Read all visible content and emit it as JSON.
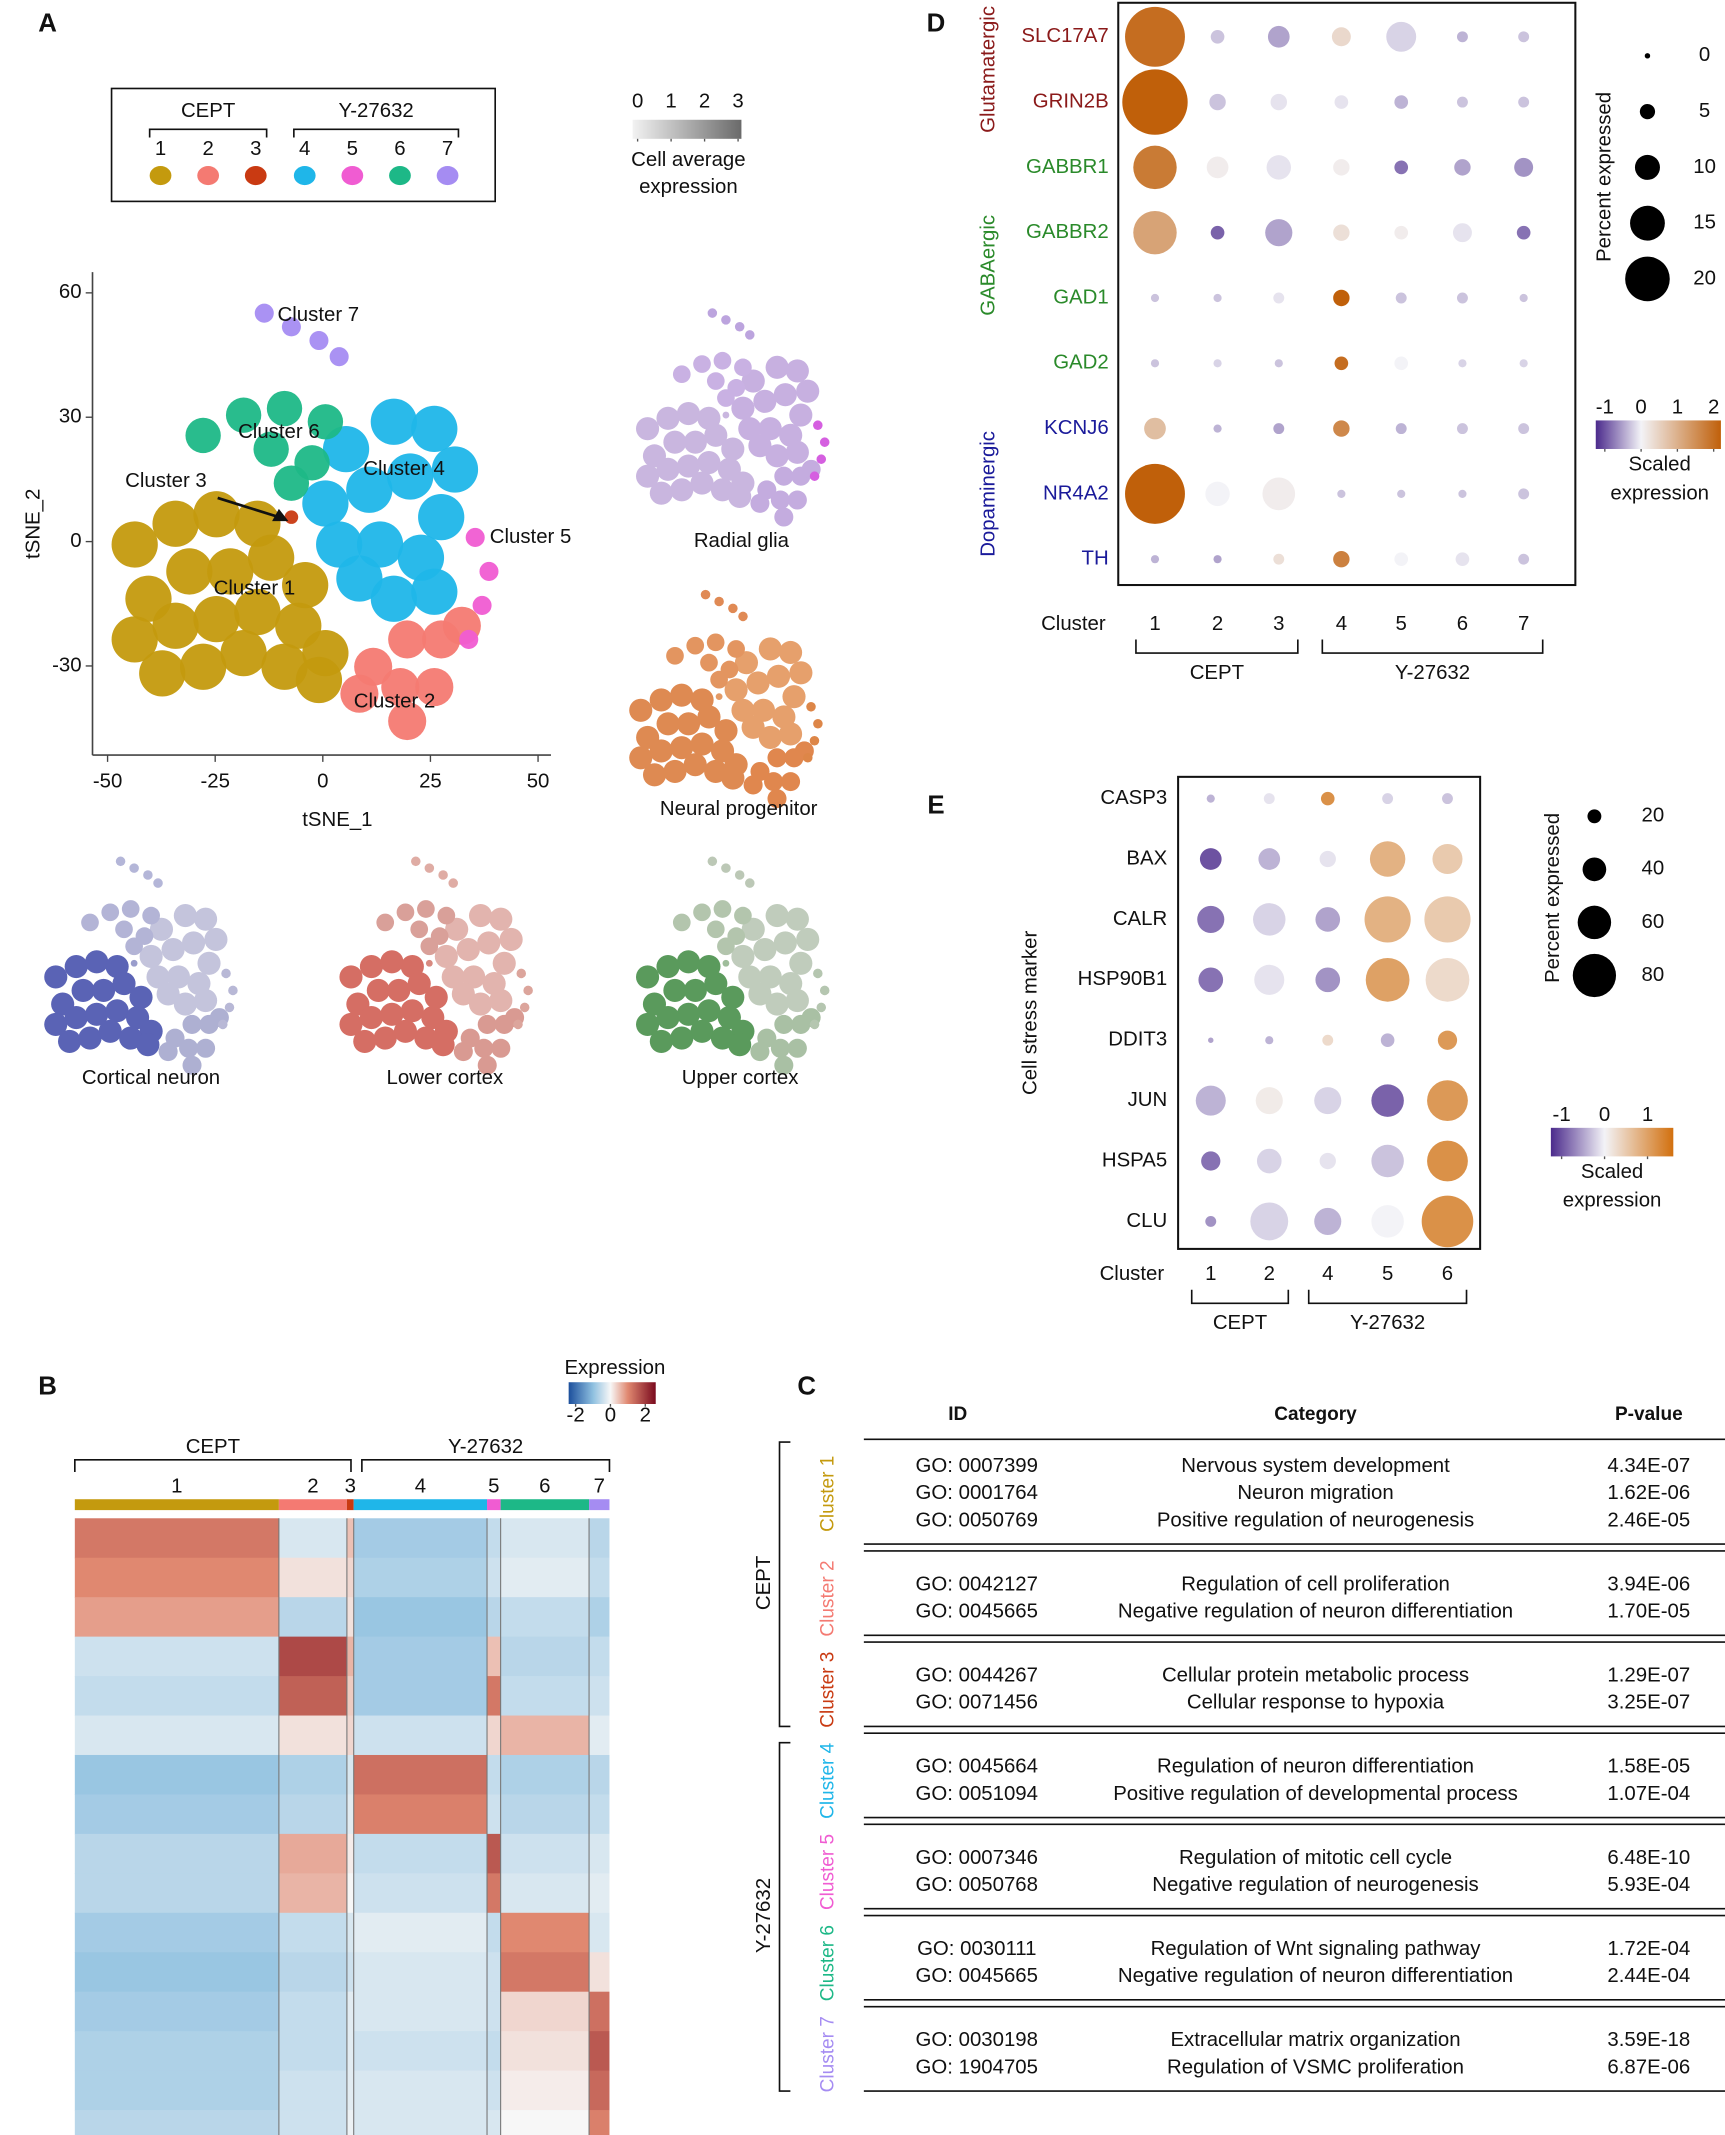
{
  "panel_labels": [
    "A",
    "B",
    "C",
    "D",
    "E"
  ],
  "chart_data": [
    {
      "type": "scatter",
      "xlabel": "tSNE_1",
      "ylabel": "tSNE_2",
      "xlim": [
        -53.5,
        53
      ],
      "ylim": [
        -51.5,
        65
      ],
      "xticks": [
        -50,
        -25,
        0,
        25,
        50
      ],
      "yticks": [
        -30,
        0,
        30,
        60
      ],
      "series": [
        {
          "name": "1",
          "group": "CEPT",
          "label": "Cluster 1",
          "color": "#c49a0e",
          "x": [
            -43.7,
            -34.2,
            -24.7,
            -15.2,
            -40.5,
            -31,
            -21.5,
            -12,
            -4.1,
            -43.7,
            -34.2,
            -24.7,
            -15.2,
            -5.7,
            0.6,
            -37.3,
            -27.8,
            -18.4,
            -8.9,
            -0.9
          ],
          "y": [
            -0.7,
            4.3,
            6.6,
            4.3,
            -13.8,
            -7.2,
            -7.2,
            -3.9,
            -10.5,
            -23.6,
            -20.3,
            -18.7,
            -17,
            -20.3,
            -26.9,
            -31.8,
            -30.2,
            -26.9,
            -30.2,
            -33.4
          ]
        },
        {
          "name": "2",
          "group": "CEPT",
          "label": "Cluster 2",
          "color": "#f47a72",
          "x": [
            11.7,
            19.6,
            27.5,
            18,
            25.9,
            19.6,
            32.3,
            8.5
          ],
          "y": [
            -30.2,
            -23.6,
            -23.6,
            -35.1,
            -35.1,
            -43.3,
            -20.3,
            -36.7
          ]
        },
        {
          "name": "3",
          "group": "CEPT",
          "label": "Cluster 3",
          "color": "#c93a12",
          "x": [
            -7.3
          ],
          "y": [
            5.9
          ]
        },
        {
          "name": "4",
          "group": "Y-27632",
          "label": "Cluster 4",
          "color": "#1fb6e9",
          "x": [
            5.4,
            16.5,
            25.9,
            30.7,
            0.6,
            10.8,
            20.3,
            27.5,
            3.8,
            13.3,
            22.8,
            16.5,
            25.9,
            8.5
          ],
          "y": [
            22.3,
            28.9,
            27.2,
            17.4,
            9.2,
            12.5,
            15.7,
            5.9,
            -0.7,
            -0.7,
            -3.9,
            -13.8,
            -12.1,
            -8.9
          ]
        },
        {
          "name": "5",
          "group": "Y-27632",
          "label": "Cluster 5",
          "color": "#f05cd2",
          "x": [
            35.4,
            38.6,
            37,
            33.9
          ],
          "y": [
            1,
            -7.2,
            -15.4,
            -23.6
          ]
        },
        {
          "name": "6",
          "group": "Y-27632",
          "label": "Cluster 6",
          "color": "#1db887",
          "x": [
            -27.8,
            -18.4,
            -8.9,
            0.6,
            -12,
            -2.5,
            -7.3
          ],
          "y": [
            25.6,
            30.5,
            32.1,
            28.9,
            22.3,
            19,
            14.1
          ]
        },
        {
          "name": "7",
          "group": "Y-27632",
          "label": "Cluster 7",
          "color": "#a58cf2",
          "x": [
            -13.6,
            -7.3,
            -0.9,
            3.8
          ],
          "y": [
            55.1,
            51.8,
            48.5,
            44.6
          ]
        }
      ],
      "colorbar": {
        "ticks": [
          0,
          1,
          2,
          3
        ],
        "label_lines": [
          "Cell average",
          "expression"
        ],
        "colorscale": [
          [
            -0.15,
            "#f2f2f2"
          ],
          [
            3.1,
            "#6a6a6a"
          ]
        ]
      },
      "feature_maps": [
        {
          "label": "Radial glia",
          "colors": [
            "#c9b6df",
            "#c4acdf",
            "#c9b6df",
            "#c7b0e0",
            "#d55fe0",
            "#c9b1e3",
            "#bca4de"
          ]
        },
        {
          "label": "Neural progenitor",
          "colors": [
            "#de8a52",
            "#e0874e",
            "#e39a66",
            "#e6a06c",
            "#dd8648",
            "#e39560",
            "#e08a55"
          ]
        },
        {
          "label": "Cortical neuron",
          "colors": [
            "#5a63b5",
            "#aeb0d2",
            "#9a9dcc",
            "#c4c4dc",
            "#b8b8d6",
            "#b3b4d6",
            "#b4b6d8"
          ]
        },
        {
          "label": "Lower cortex",
          "colors": [
            "#d56e64",
            "#d99a92",
            "#d88a80",
            "#e2b4ae",
            "#dca59c",
            "#d9a099",
            "#dfaca4"
          ]
        },
        {
          "label": "Upper cortex",
          "colors": [
            "#5a9a5c",
            "#a9c0a4",
            "#9fbd9b",
            "#c0ccbc",
            "#b5c6b0",
            "#b3c5ad",
            "#bcc8b6"
          ]
        }
      ]
    },
    {
      "type": "heatmap",
      "categories": [
        "1",
        "2",
        "3",
        "4",
        "5",
        "6",
        "7"
      ],
      "category_groups": [
        "CEPT",
        "CEPT",
        "CEPT",
        "Y-27632",
        "Y-27632",
        "Y-27632",
        "Y-27632"
      ],
      "category_colors": [
        "#c49a0e",
        "#f47a72",
        "#c93a12",
        "#1fb6e9",
        "#f05cd2",
        "#1db887",
        "#a58cf2"
      ],
      "values": [
        [
          1.2,
          -0.3,
          0.5,
          -0.8,
          -0.5,
          -0.3,
          -0.6
        ],
        [
          1.0,
          0.2,
          0.3,
          -0.7,
          -0.4,
          -0.2,
          -0.5
        ],
        [
          0.8,
          -0.6,
          0.2,
          -0.9,
          -0.6,
          -0.5,
          -0.7
        ],
        [
          -0.4,
          1.8,
          0.6,
          -0.8,
          0.5,
          -0.6,
          -0.5
        ],
        [
          -0.5,
          1.5,
          0.4,
          -0.8,
          1.2,
          -0.5,
          -0.4
        ],
        [
          -0.3,
          0.2,
          0.3,
          -0.4,
          0.3,
          0.6,
          -0.2
        ],
        [
          -0.9,
          -0.7,
          -0.3,
          1.3,
          -0.5,
          -0.7,
          -0.6
        ],
        [
          -0.8,
          -0.6,
          -0.2,
          1.1,
          -0.4,
          -0.6,
          -0.5
        ],
        [
          -0.6,
          0.7,
          0.1,
          -0.5,
          1.6,
          -0.4,
          -0.3
        ],
        [
          -0.6,
          0.6,
          0.0,
          -0.4,
          1.2,
          -0.3,
          -0.2
        ],
        [
          -0.8,
          -0.5,
          -0.3,
          -0.2,
          -0.5,
          1.0,
          -0.3
        ],
        [
          -0.9,
          -0.6,
          -0.4,
          -0.3,
          -0.4,
          1.2,
          0.2
        ],
        [
          -0.8,
          -0.5,
          -0.2,
          -0.3,
          -0.4,
          0.3,
          1.3
        ],
        [
          -0.7,
          -0.5,
          -0.2,
          -0.4,
          -0.5,
          0.2,
          1.6
        ],
        [
          -0.7,
          -0.4,
          -0.2,
          -0.3,
          -0.4,
          0.1,
          1.4
        ],
        [
          -0.6,
          -0.4,
          -0.1,
          -0.3,
          -0.3,
          0.0,
          1.1
        ]
      ],
      "colorbar": {
        "title": "Expression",
        "ticks": [
          -2,
          0,
          2
        ],
        "colorscale": [
          [
            -2.4,
            "#1c4f9c"
          ],
          [
            -1,
            "#8fc0e0"
          ],
          [
            0,
            "#f7f7f7"
          ],
          [
            1,
            "#e08870"
          ],
          [
            2.6,
            "#7a0a1e"
          ]
        ]
      }
    },
    {
      "type": "dotplot",
      "xlabel": "Cluster",
      "categories": [
        "1",
        "2",
        "3",
        "4",
        "5",
        "6",
        "7"
      ],
      "category_groups": [
        "CEPT",
        "CEPT",
        "CEPT",
        "Y-27632",
        "Y-27632",
        "Y-27632",
        "Y-27632"
      ],
      "rows": [
        "SLC17A7",
        "GRIN2B",
        "GABBR1",
        "GABBR2",
        "GAD1",
        "GAD2",
        "KCNJ6",
        "NR4A2",
        "TH"
      ],
      "row_groups": [
        "Glutamatergic",
        "Glutamatergic",
        "GABAergic",
        "GABAergic",
        "GABAergic",
        "GABAergic",
        "Dopaminergic",
        "Dopaminergic",
        "Dopaminergic"
      ],
      "row_colors": [
        "#8b1a1a",
        "#8b1a1a",
        "#2a8a2a",
        "#2a8a2a",
        "#2a8a2a",
        "#2a8a2a",
        "#1a1a9a",
        "#1a1a9a",
        "#1a1a9a"
      ],
      "sizes": [
        [
          27.8,
          4.2,
          8.3,
          6.9,
          12.5,
          2.8,
          2.8
        ],
        [
          30.6,
          5.6,
          5.6,
          4.2,
          4.2,
          2.8,
          2.8
        ],
        [
          19.4,
          8.3,
          9.7,
          5.6,
          4.2,
          5.6,
          6.9
        ],
        [
          19.4,
          4.2,
          11.1,
          5.6,
          4.2,
          6.9,
          4.2
        ],
        [
          1.4,
          1.4,
          2.8,
          5.6,
          2.8,
          2.8,
          1.4
        ],
        [
          1.4,
          1.4,
          1.4,
          4.2,
          4.2,
          1.4,
          1.4
        ],
        [
          8.3,
          1.4,
          2.8,
          5.6,
          2.8,
          2.8,
          2.8
        ],
        [
          27.8,
          9.7,
          13.9,
          1.4,
          1.4,
          1.4,
          2.8
        ],
        [
          1.4,
          1.4,
          2.8,
          5.6,
          4.2,
          4.2,
          2.8
        ]
      ],
      "values": [
        [
          2,
          -0.3,
          -0.5,
          0.4,
          -0.2,
          -0.4,
          -0.3
        ],
        [
          2.3,
          -0.3,
          -0.1,
          -0.1,
          -0.4,
          -0.3,
          -0.3
        ],
        [
          1.8,
          0.1,
          -0.1,
          0.1,
          -0.8,
          -0.5,
          -0.6
        ],
        [
          1.2,
          -0.9,
          -0.5,
          0.3,
          0.1,
          -0.1,
          -0.8
        ],
        [
          -0.3,
          -0.3,
          -0.1,
          2.2,
          -0.3,
          -0.3,
          -0.3
        ],
        [
          -0.3,
          -0.2,
          -0.3,
          2.0,
          0,
          -0.2,
          -0.2
        ],
        [
          0.8,
          -0.4,
          -0.5,
          1.6,
          -0.4,
          -0.3,
          -0.3
        ],
        [
          2.2,
          0,
          0.1,
          -0.3,
          -0.3,
          -0.3,
          -0.3
        ],
        [
          -0.4,
          -0.5,
          0.3,
          1.7,
          0,
          -0.1,
          -0.3
        ]
      ],
      "size_legend": {
        "title": "Percent expressed",
        "ticks": [
          0,
          5,
          10,
          15,
          20
        ]
      },
      "colorbar": {
        "ticks": [
          -1,
          0,
          1,
          2
        ],
        "label_lines": [
          "Scaled",
          "expression"
        ],
        "colorscale": [
          [
            -1.25,
            "#4b2a8c"
          ],
          [
            0,
            "#f3f3f7"
          ],
          [
            2.2,
            "#c0600a"
          ]
        ]
      }
    },
    {
      "type": "dotplot",
      "xlabel": "Cluster",
      "ylabel": "Cell stress marker",
      "categories": [
        "1",
        "2",
        "4",
        "5",
        "6"
      ],
      "category_groups": [
        "CEPT",
        "CEPT",
        "Y-27632",
        "Y-27632",
        "Y-27632"
      ],
      "rows": [
        "CASP3",
        "BAX",
        "CALR",
        "HSP90B1",
        "DDIT3",
        "JUN",
        "HSPA5",
        "CLU"
      ],
      "sizes": [
        [
          8.3,
          13.9,
          19.4,
          13.9,
          13.9
        ],
        [
          36,
          36,
          25,
          64,
          53
        ],
        [
          47,
          58,
          42,
          86,
          86
        ],
        [
          42,
          53,
          42,
          81,
          81
        ],
        [
          2.8,
          8.3,
          13.9,
          19.4,
          31
        ],
        [
          53,
          47,
          47,
          58,
          75
        ],
        [
          31,
          42,
          25,
          58,
          75
        ],
        [
          14,
          69,
          47,
          58,
          97
        ]
      ],
      "values": [
        [
          -0.4,
          -0.1,
          1.2,
          -0.2,
          -0.3
        ],
        [
          -1,
          -0.4,
          -0.1,
          0.8,
          0.5
        ],
        [
          -0.8,
          -0.2,
          -0.5,
          0.8,
          0.5
        ],
        [
          -0.8,
          -0.1,
          -0.6,
          1.0,
          0.3
        ],
        [
          -0.5,
          -0.4,
          0.3,
          -0.4,
          1.1
        ],
        [
          -0.4,
          0.1,
          -0.2,
          -0.9,
          1.1
        ],
        [
          -0.8,
          -0.2,
          -0.1,
          -0.3,
          1.2
        ],
        [
          -0.6,
          -0.2,
          -0.4,
          0,
          1.2
        ]
      ],
      "size_legend": {
        "title": "Percent expressed",
        "ticks": [
          20,
          40,
          60,
          80
        ]
      },
      "colorbar": {
        "ticks": [
          -1,
          0,
          1
        ],
        "label_lines": [
          "Scaled",
          "expression"
        ],
        "colorscale": [
          [
            -1.25,
            "#4b2a8c"
          ],
          [
            0,
            "#f3f3f7"
          ],
          [
            1.6,
            "#d2700e"
          ]
        ]
      }
    }
  ],
  "table": {
    "columns": [
      "ID",
      "Category",
      "P-value"
    ],
    "groups": [
      {
        "name": "CEPT",
        "clusters": [
          {
            "name": "Cluster 1",
            "color": "#c49a0e",
            "rows": [
              [
                "GO: 0007399",
                "Nervous system development",
                "4.34E-07"
              ],
              [
                "GO: 0001764",
                "Neuron migration",
                "1.62E-06"
              ],
              [
                "GO: 0050769",
                "Positive regulation of neurogenesis",
                "2.46E-05"
              ]
            ]
          },
          {
            "name": "Cluster 2",
            "color": "#f47a72",
            "rows": [
              [
                "GO: 0042127",
                "Regulation of cell proliferation",
                "3.94E-06"
              ],
              [
                "GO: 0045665",
                "Negative regulation of neuron differentiation",
                "1.70E-05"
              ]
            ]
          },
          {
            "name": "Cluster 3",
            "color": "#c93a12",
            "rows": [
              [
                "GO: 0044267",
                "Cellular protein metabolic process",
                "1.29E-07"
              ],
              [
                "GO: 0071456",
                "Cellular response to hypoxia",
                "3.25E-07"
              ]
            ]
          }
        ]
      },
      {
        "name": "Y-27632",
        "clusters": [
          {
            "name": "Cluster 4",
            "color": "#1fb6e9",
            "rows": [
              [
                "GO: 0045664",
                "Regulation of neuron differentiation",
                "1.58E-05"
              ],
              [
                "GO: 0051094",
                "Positive regulation of developmental process",
                "1.07E-04"
              ]
            ]
          },
          {
            "name": "Cluster 5",
            "color": "#f05cd2",
            "rows": [
              [
                "GO: 0007346",
                "Regulation of mitotic cell cycle",
                "6.48E-10"
              ],
              [
                "GO: 0050768",
                "Negative regulation of neurogenesis",
                "5.93E-04"
              ]
            ]
          },
          {
            "name": "Cluster 6",
            "color": "#1db887",
            "rows": [
              [
                "GO: 0030111",
                "Regulation of Wnt signaling pathway",
                "1.72E-04"
              ],
              [
                "GO: 0045665",
                "Negative regulation of neuron differentiation",
                "2.44E-04"
              ]
            ]
          },
          {
            "name": "Cluster 7",
            "color": "#a58cf2",
            "rows": [
              [
                "GO: 0030198",
                "Extracellular matrix organization",
                "3.59E-18"
              ],
              [
                "GO: 1904705",
                "Regulation of VSMC proliferation",
                "6.87E-06"
              ]
            ]
          }
        ]
      }
    ]
  }
}
